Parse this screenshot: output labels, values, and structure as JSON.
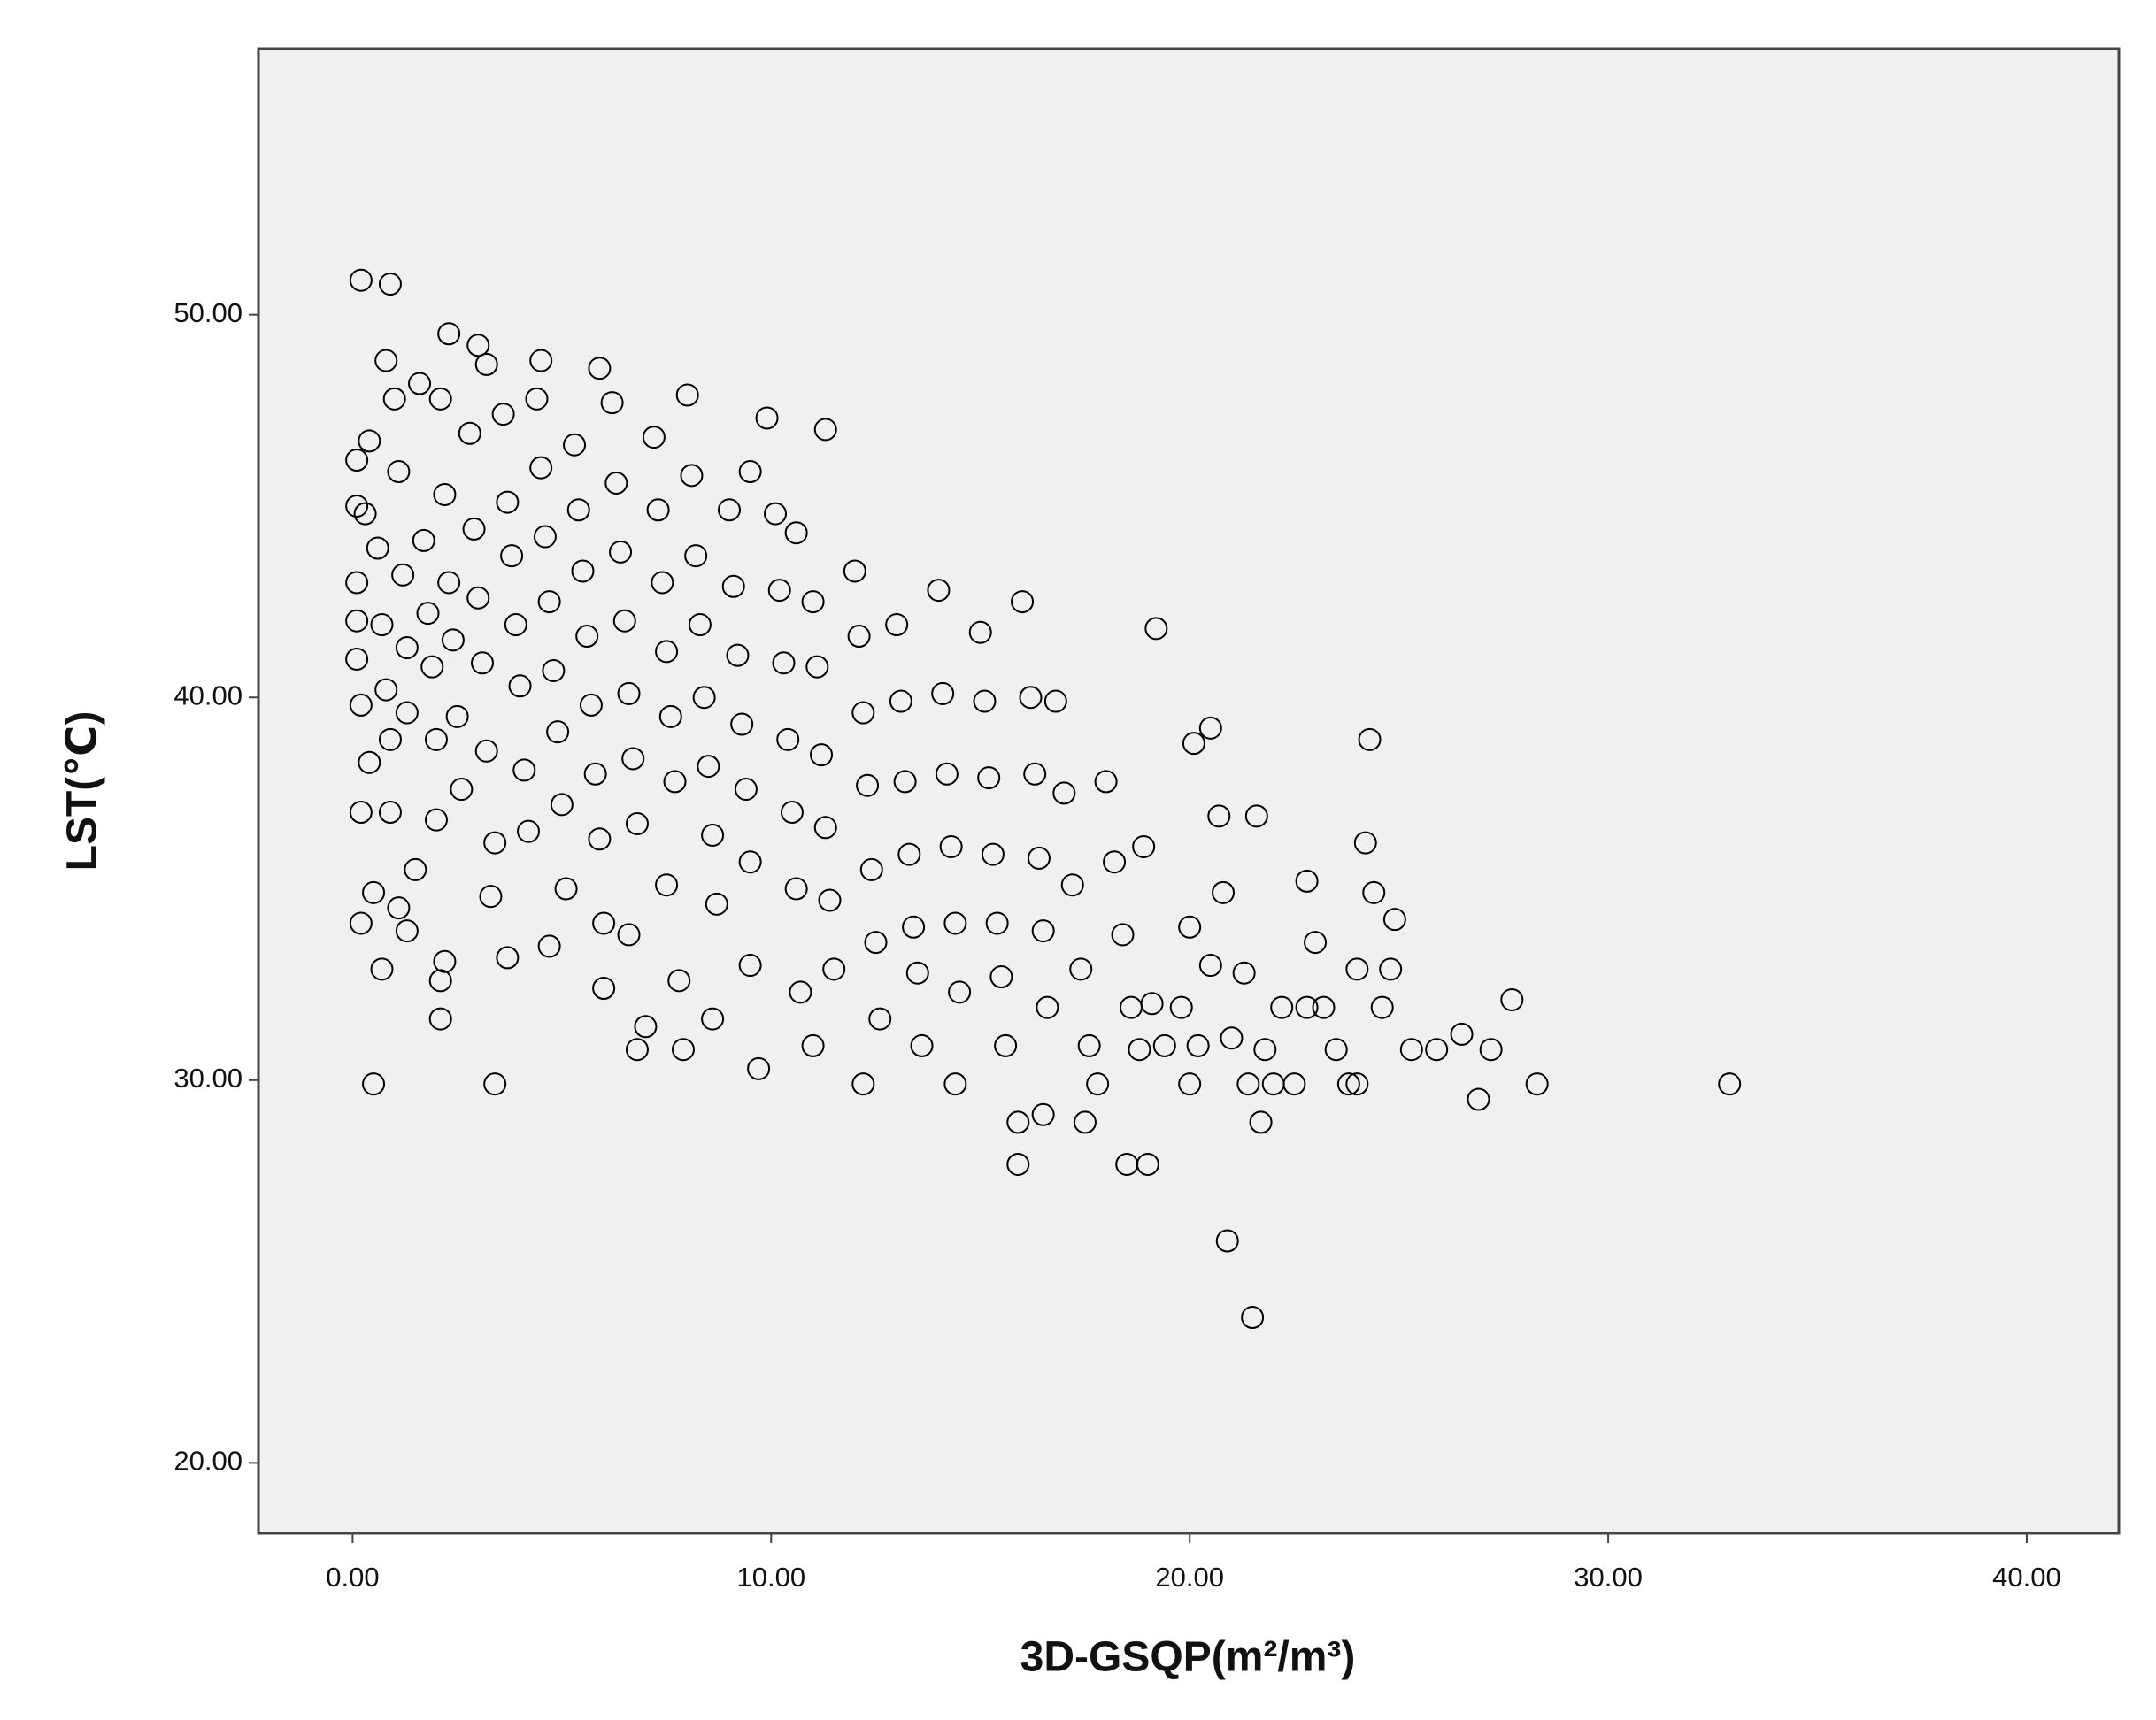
{
  "chart_data": {
    "type": "scatter",
    "x_label": "3D-GSQP(m²/m³)",
    "y_label": "LST(℃)",
    "xlim": [
      -2.25,
      42.2
    ],
    "ylim": [
      18.16,
      56.95
    ],
    "xticks": [
      {
        "value": 0,
        "label": "0.00"
      },
      {
        "value": 10,
        "label": "10.00"
      },
      {
        "value": 20,
        "label": "20.00"
      },
      {
        "value": 30,
        "label": "30.00"
      },
      {
        "value": 40,
        "label": "40.00"
      }
    ],
    "yticks": [
      {
        "value": 20,
        "label": "20.00"
      },
      {
        "value": 30,
        "label": "30.00"
      },
      {
        "value": 40,
        "label": "40.00"
      },
      {
        "value": 50,
        "label": "50.00"
      }
    ],
    "color": "#000000",
    "background": "#f0f0f0",
    "x": [
      0.2,
      0.9,
      2.3,
      3.0,
      3.2,
      4.5,
      5.9,
      0.8,
      11.3,
      9.9,
      19.2,
      24.3,
      20.5,
      20.1,
      24.2,
      21.6,
      20.7,
      32.9,
      28.3,
      27.7,
      26.9,
      27.2,
      26.5,
      25.9,
      20.9,
      21.5,
      15.9,
      18.5,
      19.0,
      0.5,
      3.4,
      15.9,
      17.5,
      16.5,
      9.7,
      2.1,
      7.9,
      6.8,
      0.7,
      2.1,
      24.9,
      24.4,
      23.0,
      22.8,
      22.0,
      23.8,
      24.0,
      0.1,
      0.1,
      0.1,
      0.1,
      0.1,
      0.2,
      0.2,
      0.2,
      0.4,
      0.5,
      0.3,
      0.4,
      0.6,
      0.7,
      0.8,
      0.9,
      0.9,
      1.0,
      1.1,
      1.2,
      1.3,
      1.3,
      1.1,
      1.3,
      1.5,
      1.6,
      1.7,
      1.8,
      1.9,
      2.0,
      2.0,
      2.1,
      2.2,
      2.3,
      2.4,
      2.5,
      2.6,
      2.2,
      2.8,
      2.9,
      3.0,
      3.1,
      3.2,
      3.4,
      3.3,
      3.6,
      3.7,
      3.8,
      3.9,
      4.0,
      4.1,
      4.2,
      3.7,
      4.4,
      4.5,
      4.6,
      4.7,
      4.8,
      4.9,
      5.0,
      5.1,
      4.7,
      5.3,
      5.4,
      5.5,
      5.6,
      5.7,
      5.8,
      5.9,
      6.0,
      6.0,
      6.2,
      6.3,
      6.4,
      6.5,
      6.6,
      6.7,
      6.8,
      6.6,
      7.0,
      7.2,
      7.3,
      7.4,
      7.5,
      7.6,
      7.7,
      7.5,
      7.8,
      8.0,
      8.1,
      8.2,
      8.3,
      8.4,
      8.5,
      8.6,
      8.7,
      8.6,
      9.0,
      9.1,
      9.2,
      9.3,
      9.4,
      9.5,
      9.5,
      9.5,
      10.1,
      10.2,
      10.3,
      10.4,
      10.5,
      10.6,
      10.7,
      10.6,
      11.0,
      11.1,
      11.2,
      11.3,
      11.4,
      11.5,
      11.0,
      12.0,
      12.1,
      12.2,
      12.3,
      12.4,
      12.5,
      12.6,
      12.2,
      13.0,
      13.1,
      13.2,
      13.3,
      13.4,
      13.5,
      13.6,
      14.0,
      14.1,
      14.2,
      14.3,
      14.4,
      14.5,
      14.4,
      15.0,
      15.1,
      15.2,
      15.3,
      15.4,
      15.5,
      15.6,
      16.0,
      16.2,
      16.3,
      16.4,
      16.5,
      16.6,
      16.8,
      17.0,
      17.2,
      17.4,
      17.6,
      17.8,
      18.0,
      18.2,
      18.4,
      18.6,
      18.8,
      18.9,
      19.1,
      19.4,
      19.8,
      20.0,
      20.0,
      20.2,
      20.5,
      20.8,
      21.0,
      21.3,
      21.4,
      21.7,
      21.8,
      22.2,
      22.5,
      22.8,
      23.2,
      23.5,
      24.0,
      24.6,
      24.8,
      25.3
    ],
    "values": [
      50.9,
      50.8,
      49.5,
      49.2,
      48.7,
      48.8,
      48.6,
      48.8,
      47.0,
      47.3,
      41.8,
      38.9,
      39.2,
      38.8,
      36.2,
      36.9,
      36.9,
      29.9,
      29.9,
      32.1,
      29.5,
      30.8,
      31.2,
      30.8,
      25.8,
      23.8,
      27.8,
      27.8,
      27.8,
      29.9,
      29.9,
      28.9,
      28.9,
      29.1,
      30.3,
      31.6,
      30.8,
      30.8,
      32.9,
      32.6,
      34.2,
      34.9,
      33.6,
      35.2,
      29.9,
      29.9,
      32.9,
      46.2,
      45.0,
      43.0,
      42.0,
      41.0,
      39.8,
      37.0,
      34.1,
      38.3,
      34.9,
      44.8,
      46.7,
      43.9,
      41.9,
      40.2,
      38.9,
      37.0,
      47.8,
      45.9,
      43.2,
      41.3,
      39.6,
      34.5,
      33.9,
      35.5,
      48.2,
      44.1,
      42.2,
      40.8,
      38.9,
      36.8,
      47.8,
      45.3,
      43.0,
      41.5,
      39.5,
      37.6,
      33.1,
      46.9,
      44.4,
      42.6,
      40.9,
      38.6,
      36.2,
      34.8,
      47.4,
      45.1,
      43.7,
      41.9,
      40.3,
      38.1,
      36.5,
      33.2,
      47.8,
      46.0,
      44.2,
      42.5,
      40.7,
      39.1,
      37.2,
      35.0,
      33.5,
      46.6,
      44.9,
      43.3,
      41.6,
      39.8,
      38.0,
      36.3,
      34.1,
      32.4,
      47.7,
      45.6,
      43.8,
      42.0,
      40.1,
      38.4,
      36.7,
      33.8,
      31.4,
      46.8,
      44.9,
      43.0,
      41.2,
      39.5,
      37.8,
      35.1,
      32.6,
      47.9,
      45.8,
      43.7,
      41.9,
      40.0,
      38.2,
      36.4,
      34.6,
      31.6,
      44.9,
      42.9,
      41.1,
      39.3,
      37.6,
      35.7,
      33.0,
      45.9,
      44.8,
      42.8,
      40.9,
      38.9,
      37.0,
      35.0,
      32.3,
      44.3,
      42.5,
      40.8,
      38.5,
      36.6,
      34.7,
      32.9,
      30.9,
      43.3,
      41.6,
      39.6,
      37.7,
      35.5,
      33.6,
      31.6,
      29.9,
      41.9,
      39.9,
      37.8,
      35.9,
      34.0,
      32.8,
      30.9,
      42.8,
      40.1,
      38.0,
      36.1,
      34.1,
      32.3,
      29.9,
      41.7,
      39.9,
      37.9,
      35.9,
      34.1,
      32.7,
      30.9,
      42.5,
      40.0,
      38.0,
      35.8,
      33.9,
      31.9,
      39.9,
      37.5,
      35.1,
      32.9,
      30.9,
      29.9,
      37.8,
      35.7,
      33.8,
      31.9,
      30.8,
      36.1,
      32.0,
      30.9,
      31.9,
      34.0,
      29.9,
      30.9,
      33.0,
      34.9,
      31.1,
      32.8,
      29.9,
      28.9,
      30.8,
      31.9,
      29.9,
      31.9,
      31.9,
      30.8,
      29.9,
      31.9,
      32.9,
      30.8
    ]
  }
}
